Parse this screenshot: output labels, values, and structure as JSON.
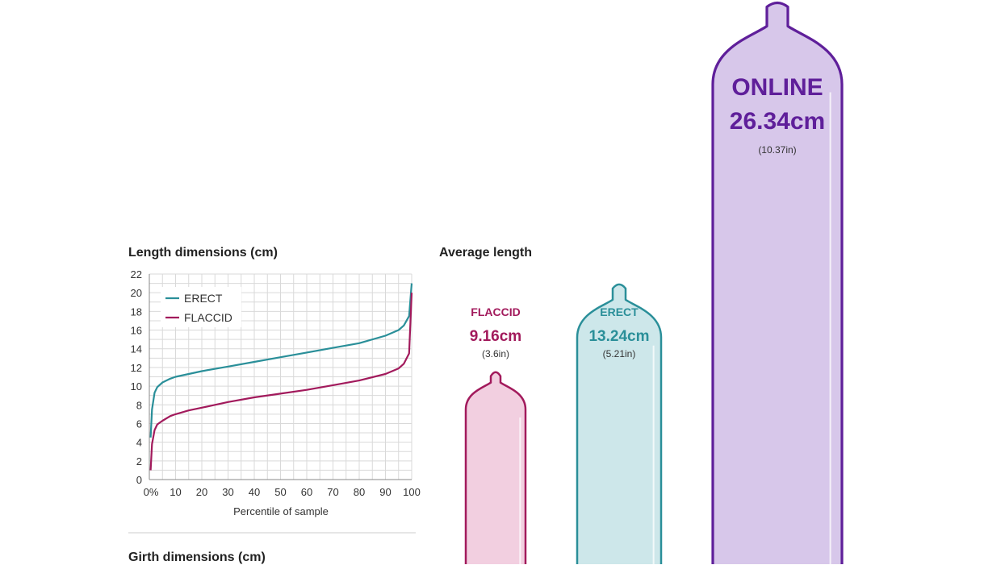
{
  "line_chart": {
    "title": "Length dimensions (cm)",
    "xlabel": "Percentile of sample",
    "y_ticks": [
      "0",
      "2",
      "4",
      "6",
      "8",
      "10",
      "12",
      "14",
      "16",
      "18",
      "20",
      "22"
    ],
    "x_ticks": [
      "0%",
      "10",
      "20",
      "30",
      "40",
      "50",
      "60",
      "70",
      "80",
      "90",
      "100"
    ],
    "legend": {
      "erect": "ERECT",
      "flaccid": "FLACCID"
    }
  },
  "avg_chart": {
    "title": "Average length",
    "flaccid": {
      "label": "FLACCID",
      "value": "9.16cm",
      "inches": "(3.6in)"
    },
    "erect": {
      "label": "ERECT",
      "value": "13.24cm",
      "inches": "(5.21in)"
    },
    "online": {
      "label": "ONLINE",
      "value": "26.34cm",
      "inches": "(10.37in)"
    }
  },
  "girth_title": "Girth dimensions (cm)",
  "colors": {
    "erect": "#2a8f99",
    "flaccid": "#a21a5c",
    "online": "#5f1f9a",
    "erect_fill": "#cde7ea",
    "flaccid_fill": "#f2cfe0",
    "online_fill": "#d7c7ea"
  },
  "chart_data": [
    {
      "type": "line",
      "title": "Length dimensions (cm)",
      "xlabel": "Percentile of sample",
      "ylabel": "",
      "xlim": [
        0,
        100
      ],
      "ylim": [
        0,
        22
      ],
      "grid": true,
      "legend": "top-left",
      "series": [
        {
          "name": "ERECT",
          "x": [
            0.5,
            1,
            2,
            3,
            5,
            8,
            10,
            15,
            20,
            30,
            40,
            50,
            60,
            70,
            80,
            90,
            95,
            97,
            99,
            100
          ],
          "y": [
            4.5,
            7.5,
            9.3,
            9.9,
            10.4,
            10.8,
            11.0,
            11.3,
            11.6,
            12.1,
            12.6,
            13.1,
            13.6,
            14.1,
            14.6,
            15.4,
            16.0,
            16.5,
            17.5,
            21.0
          ]
        },
        {
          "name": "FLACCID",
          "x": [
            0.5,
            1,
            2,
            3,
            5,
            8,
            10,
            15,
            20,
            30,
            40,
            50,
            60,
            70,
            80,
            90,
            95,
            97,
            99,
            100
          ],
          "y": [
            1.0,
            3.8,
            5.3,
            5.9,
            6.3,
            6.8,
            7.0,
            7.4,
            7.7,
            8.3,
            8.8,
            9.2,
            9.6,
            10.1,
            10.6,
            11.3,
            11.9,
            12.4,
            13.5,
            20.0
          ]
        }
      ]
    },
    {
      "type": "bar",
      "title": "Average length",
      "categories": [
        "FLACCID",
        "ERECT",
        "ONLINE"
      ],
      "values": [
        9.16,
        13.24,
        26.34
      ],
      "ylabel": ""
    }
  ]
}
